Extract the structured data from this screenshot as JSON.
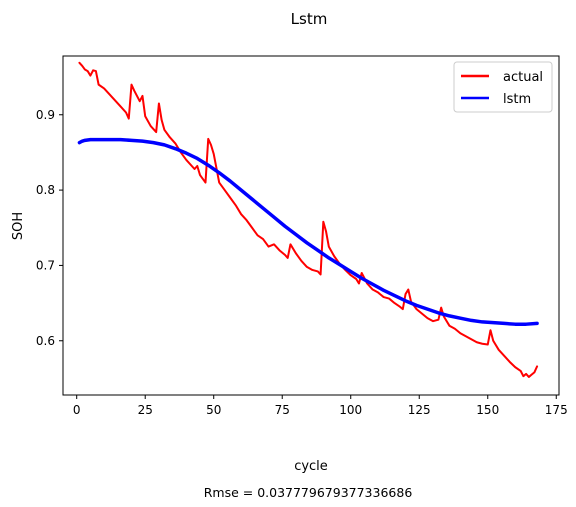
{
  "chart_data": {
    "type": "line",
    "title": "Lstm",
    "xlabel": "cycle",
    "ylabel": "SOH",
    "xlim": [
      -5,
      176
    ],
    "ylim": [
      0.528,
      0.978
    ],
    "xticks": [
      0,
      25,
      50,
      75,
      100,
      125,
      150,
      175
    ],
    "yticks": [
      0.6,
      0.7,
      0.8,
      0.9
    ],
    "xtick_labels": [
      "0",
      "25",
      "50",
      "75",
      "100",
      "125",
      "150",
      "175"
    ],
    "ytick_labels": [
      "0.6",
      "0.7",
      "0.8",
      "0.9"
    ],
    "grid": false,
    "legend_position": "top-right",
    "footer": "Rmse = 0.037779679377336686",
    "series": [
      {
        "name": "actual",
        "color": "#ff0000",
        "x": [
          1,
          2,
          3,
          4,
          5,
          6,
          7,
          8,
          10,
          12,
          14,
          16,
          18,
          19,
          20,
          21,
          22,
          23,
          24,
          25,
          27,
          29,
          30,
          31,
          32,
          34,
          36,
          38,
          40,
          42,
          43,
          44,
          45,
          46,
          47,
          48,
          49,
          50,
          52,
          54,
          56,
          58,
          60,
          62,
          64,
          66,
          68,
          70,
          72,
          74,
          76,
          77,
          78,
          80,
          82,
          84,
          86,
          88,
          89,
          90,
          91,
          92,
          94,
          96,
          98,
          100,
          102,
          103,
          104,
          106,
          108,
          110,
          112,
          114,
          116,
          118,
          119,
          120,
          121,
          122,
          124,
          126,
          128,
          130,
          132,
          133,
          134,
          136,
          138,
          140,
          142,
          144,
          146,
          148,
          150,
          151,
          152,
          154,
          156,
          158,
          160,
          162,
          163,
          164,
          165,
          166,
          167,
          168
        ],
        "y": [
          0.969,
          0.965,
          0.96,
          0.958,
          0.952,
          0.959,
          0.958,
          0.94,
          0.935,
          0.927,
          0.919,
          0.911,
          0.903,
          0.895,
          0.94,
          0.932,
          0.925,
          0.918,
          0.925,
          0.898,
          0.885,
          0.877,
          0.915,
          0.893,
          0.88,
          0.87,
          0.862,
          0.85,
          0.84,
          0.832,
          0.828,
          0.832,
          0.82,
          0.815,
          0.81,
          0.868,
          0.86,
          0.848,
          0.81,
          0.8,
          0.79,
          0.78,
          0.768,
          0.76,
          0.75,
          0.74,
          0.735,
          0.725,
          0.728,
          0.72,
          0.714,
          0.71,
          0.728,
          0.716,
          0.706,
          0.698,
          0.694,
          0.692,
          0.688,
          0.758,
          0.745,
          0.725,
          0.712,
          0.702,
          0.694,
          0.687,
          0.682,
          0.676,
          0.69,
          0.676,
          0.668,
          0.664,
          0.658,
          0.656,
          0.65,
          0.645,
          0.642,
          0.662,
          0.668,
          0.652,
          0.642,
          0.636,
          0.63,
          0.626,
          0.628,
          0.644,
          0.632,
          0.62,
          0.616,
          0.61,
          0.606,
          0.602,
          0.598,
          0.596,
          0.595,
          0.614,
          0.6,
          0.588,
          0.58,
          0.572,
          0.565,
          0.56,
          0.553,
          0.556,
          0.552,
          0.555,
          0.558,
          0.566
        ]
      },
      {
        "name": "lstm",
        "color": "#0000ff",
        "x": [
          1,
          2,
          3,
          5,
          8,
          12,
          16,
          20,
          24,
          28,
          32,
          36,
          40,
          44,
          48,
          52,
          56,
          60,
          64,
          68,
          72,
          76,
          80,
          84,
          88,
          92,
          96,
          100,
          104,
          108,
          112,
          116,
          120,
          124,
          128,
          132,
          136,
          140,
          144,
          148,
          152,
          156,
          160,
          164,
          168
        ],
        "y": [
          0.863,
          0.865,
          0.866,
          0.867,
          0.867,
          0.867,
          0.867,
          0.866,
          0.865,
          0.863,
          0.86,
          0.855,
          0.849,
          0.842,
          0.833,
          0.823,
          0.812,
          0.8,
          0.788,
          0.776,
          0.764,
          0.752,
          0.741,
          0.73,
          0.72,
          0.71,
          0.701,
          0.692,
          0.683,
          0.675,
          0.667,
          0.66,
          0.653,
          0.647,
          0.642,
          0.637,
          0.633,
          0.63,
          0.627,
          0.625,
          0.624,
          0.623,
          0.622,
          0.622,
          0.623
        ]
      }
    ]
  }
}
